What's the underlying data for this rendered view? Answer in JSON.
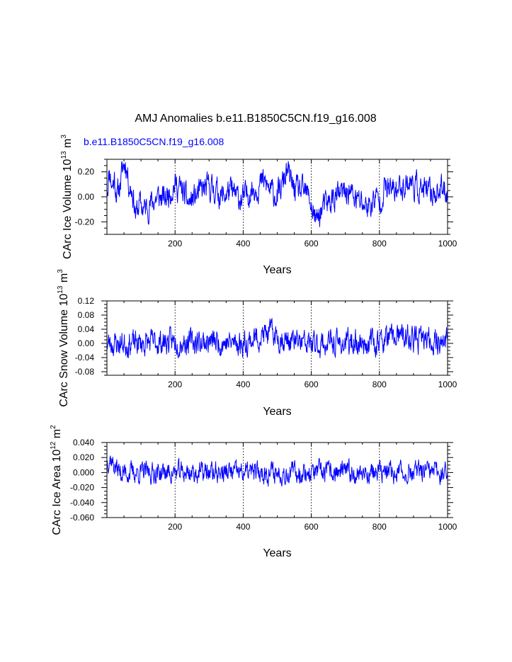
{
  "main_title": "AMJ Anomalies b.e11.B1850C5CN.f19_g16.008",
  "case_label": "b.e11.B1850C5CN.f19_g16.008",
  "colors": {
    "series": "#0000ff",
    "case_label": "#0000ff",
    "axes": "#000000",
    "ref_lines": "#000000"
  },
  "chart_data": [
    {
      "type": "line",
      "name": "volume",
      "xlabel": "Years",
      "ylabel": {
        "main": "CArc Ice Volume 10",
        "sup1": "13",
        "mid": " m",
        "sup2": "3"
      },
      "xlim": [
        0,
        1000
      ],
      "ylim": [
        -0.3,
        0.3
      ],
      "xticks": [
        200,
        400,
        600,
        800,
        1000
      ],
      "xtick_labels": [
        "200",
        "400",
        "600",
        "800",
        "1000"
      ],
      "yticks": [
        -0.2,
        0.0,
        0.2
      ],
      "ytick_labels": [
        "-0.20",
        "0.00",
        "0.20"
      ],
      "y_minor_step": 0.05,
      "x_minor_step": 50,
      "grid": "dashed vertical lines at x ticks",
      "series": [
        {
          "keypoints": [
            [
              0,
              0.05
            ],
            [
              8,
              0.22
            ],
            [
              15,
              0.08
            ],
            [
              22,
              0.15
            ],
            [
              30,
              0.0
            ],
            [
              40,
              0.12
            ],
            [
              48,
              0.25
            ],
            [
              55,
              0.28
            ],
            [
              65,
              0.1
            ],
            [
              75,
              0.05
            ],
            [
              85,
              -0.15
            ],
            [
              95,
              -0.05
            ],
            [
              110,
              -0.1
            ],
            [
              130,
              -0.05
            ],
            [
              150,
              0.0
            ],
            [
              170,
              -0.02
            ],
            [
              185,
              0.05
            ],
            [
              200,
              0.1
            ],
            [
              220,
              0.05
            ],
            [
              240,
              -0.05
            ],
            [
              260,
              0.0
            ],
            [
              280,
              0.05
            ],
            [
              300,
              0.08
            ],
            [
              320,
              0.05
            ],
            [
              340,
              0.0
            ],
            [
              360,
              0.05
            ],
            [
              380,
              0.0
            ],
            [
              400,
              -0.02
            ],
            [
              420,
              0.05
            ],
            [
              440,
              0.08
            ],
            [
              460,
              0.12
            ],
            [
              480,
              0.05
            ],
            [
              500,
              0.0
            ],
            [
              510,
              0.05
            ],
            [
              520,
              0.15
            ],
            [
              530,
              0.2
            ],
            [
              545,
              0.08
            ],
            [
              560,
              0.05
            ],
            [
              580,
              0.03
            ],
            [
              595,
              0.0
            ],
            [
              600,
              -0.08
            ],
            [
              615,
              -0.2
            ],
            [
              630,
              -0.1
            ],
            [
              650,
              -0.05
            ],
            [
              670,
              0.0
            ],
            [
              690,
              0.02
            ],
            [
              710,
              0.05
            ],
            [
              730,
              -0.02
            ],
            [
              750,
              -0.05
            ],
            [
              770,
              -0.08
            ],
            [
              790,
              0.0
            ],
            [
              800,
              -0.05
            ],
            [
              815,
              0.08
            ],
            [
              830,
              0.05
            ],
            [
              850,
              0.05
            ],
            [
              870,
              0.1
            ],
            [
              890,
              0.12
            ],
            [
              910,
              0.08
            ],
            [
              930,
              0.05
            ],
            [
              950,
              0.02
            ],
            [
              970,
              0.05
            ],
            [
              990,
              0.05
            ],
            [
              1000,
              0.05
            ]
          ],
          "amplitude": 0.085,
          "n_points": 1000,
          "seed": 11
        }
      ],
      "ref_lines_x": [
        200,
        400,
        600,
        800
      ]
    },
    {
      "type": "line",
      "name": "snow",
      "xlabel": "Years",
      "ylabel": {
        "main": "CArc Snow Volume 10",
        "sup1": "13",
        "mid": " m",
        "sup2": "3"
      },
      "xlim": [
        0,
        1000
      ],
      "ylim": [
        -0.09,
        0.12
      ],
      "xticks": [
        200,
        400,
        600,
        800,
        1000
      ],
      "xtick_labels": [
        "200",
        "400",
        "600",
        "800",
        "1000"
      ],
      "yticks": [
        -0.08,
        -0.04,
        0.0,
        0.04,
        0.08,
        0.12
      ],
      "ytick_labels": [
        "-0.08",
        "-0.04",
        "0.00",
        "0.04",
        "0.08",
        "0.12"
      ],
      "y_minor_step": 0.01,
      "x_minor_step": 50,
      "grid": "dashed vertical lines at x ticks",
      "series": [
        {
          "keypoints": [
            [
              0,
              0.0
            ],
            [
              100,
              0.0
            ],
            [
              200,
              0.005
            ],
            [
              300,
              0.005
            ],
            [
              400,
              0.0
            ],
            [
              450,
              0.02
            ],
            [
              480,
              0.03
            ],
            [
              520,
              0.01
            ],
            [
              600,
              -0.005
            ],
            [
              650,
              0.0
            ],
            [
              700,
              0.0
            ],
            [
              800,
              0.005
            ],
            [
              850,
              0.02
            ],
            [
              900,
              0.01
            ],
            [
              1000,
              0.005
            ]
          ],
          "amplitude": 0.028,
          "n_points": 1000,
          "seed": 23
        }
      ],
      "ref_lines_x": [
        200,
        400,
        600,
        800
      ]
    },
    {
      "type": "line",
      "name": "area",
      "xlabel": "Years",
      "ylabel": {
        "main": "CArc Ice Area 10",
        "sup1": "12",
        "mid": " m",
        "sup2": "2"
      },
      "xlim": [
        0,
        1000
      ],
      "ylim": [
        -0.06,
        0.04
      ],
      "xticks": [
        200,
        400,
        600,
        800,
        1000
      ],
      "xtick_labels": [
        "200",
        "400",
        "600",
        "800",
        "1000"
      ],
      "yticks": [
        -0.06,
        -0.04,
        -0.02,
        0.0,
        0.02,
        0.04
      ],
      "ytick_labels": [
        "-0.060",
        "-0.040",
        "-0.020",
        "0.000",
        "0.020",
        "0.040"
      ],
      "y_minor_step": 0.005,
      "x_minor_step": 50,
      "grid": "dashed vertical lines at x ticks",
      "series": [
        {
          "keypoints": [
            [
              0,
              0.015
            ],
            [
              10,
              0.02
            ],
            [
              20,
              0.01
            ],
            [
              40,
              0.0
            ],
            [
              100,
              0.0
            ],
            [
              200,
              0.0
            ],
            [
              300,
              0.0
            ],
            [
              400,
              0.0
            ],
            [
              500,
              0.0
            ],
            [
              600,
              0.0
            ],
            [
              700,
              0.0
            ],
            [
              800,
              0.0
            ],
            [
              900,
              0.0
            ],
            [
              1000,
              0.0
            ]
          ],
          "amplitude": 0.011,
          "n_points": 1000,
          "seed": 37
        }
      ],
      "ref_lines_x": [
        200,
        400,
        600,
        800
      ]
    }
  ]
}
